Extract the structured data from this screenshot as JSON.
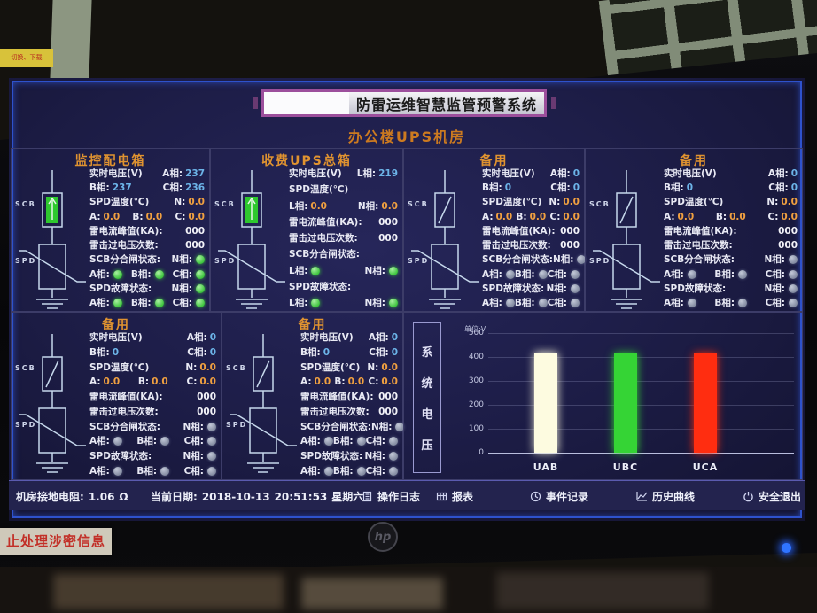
{
  "photo": {
    "bezel_sticker_top": "切换、下载",
    "bezel_sticker_bottom": "止处理涉密信息",
    "brand": "hp"
  },
  "header": {
    "system_title": "防雷运维智慧监管预警系统",
    "room_title": "办公楼UPS机房"
  },
  "panel_labels": {
    "scb": "SCB",
    "spd": "SPD",
    "voltage": "实时电压(V)",
    "phase_a": "A相:",
    "phase_b": "B相:",
    "phase_c": "C相:",
    "phase_l": "L相:",
    "phase_n": "N相:",
    "temp": "SPD温度(℃)",
    "n_short": "N:",
    "a_short": "A:",
    "b_short": "B:",
    "c_short": "C:",
    "peak": "雷电流峰值(KA):",
    "strikes": "雷击过电压次数:",
    "scb_state": "SCB分合闸状态:",
    "spd_state": "SPD故障状态:"
  },
  "panels": [
    {
      "title": "监控配电箱",
      "layout": "three",
      "scb_style": "closed",
      "led": "on",
      "va": "237",
      "vb": "237",
      "vc": "236",
      "tn": "0.0",
      "ta": "0.0",
      "tb": "0.0",
      "tc": "0.0",
      "peak": "000",
      "strikes": "000"
    },
    {
      "title": "收费UPS总箱",
      "layout": "two",
      "scb_style": "closed",
      "led": "on",
      "vl": "219",
      "tl": "0.0",
      "tn": "0.0",
      "peak": "000",
      "strikes": "000"
    },
    {
      "title": "备用",
      "layout": "three",
      "scb_style": "open",
      "led": "off",
      "va": "0",
      "vb": "0",
      "vc": "0",
      "tn": "0.0",
      "ta": "0.0",
      "tb": "0.0",
      "tc": "0.0",
      "peak": "000",
      "strikes": "000"
    },
    {
      "title": "备用",
      "layout": "three",
      "scb_style": "open",
      "led": "off",
      "va": "0",
      "vb": "0",
      "vc": "0",
      "tn": "0.0",
      "ta": "0.0",
      "tb": "0.0",
      "tc": "0.0",
      "peak": "000",
      "strikes": "000"
    },
    {
      "title": "备用",
      "layout": "three",
      "scb_style": "open",
      "led": "off",
      "va": "0",
      "vb": "0",
      "vc": "0",
      "tn": "0.0",
      "ta": "0.0",
      "tb": "0.0",
      "tc": "0.0",
      "peak": "000",
      "strikes": "000"
    },
    {
      "title": "备用",
      "layout": "three",
      "scb_style": "open",
      "led": "off",
      "va": "0",
      "vb": "0",
      "vc": "0",
      "tn": "0.0",
      "ta": "0.0",
      "tb": "0.0",
      "tc": "0.0",
      "peak": "000",
      "strikes": "000"
    }
  ],
  "chart_data": {
    "type": "bar",
    "title": "系统电压",
    "unit_label": "单位:V",
    "categories": [
      "UAB",
      "UBC",
      "UCA"
    ],
    "values": [
      418,
      414,
      416
    ],
    "bar_colors": [
      "#fdfbe0",
      "#35d435",
      "#ff2d10"
    ],
    "ylim": [
      0,
      500
    ],
    "yticks": [
      0,
      100,
      200,
      300,
      400,
      500
    ],
    "grid": true,
    "legend": false
  },
  "statusbar": {
    "ground_label": "机房接地电阻:",
    "ground_value": "1.06",
    "ground_unit": "Ω",
    "date_label": "当前日期:",
    "date_value": "2018-10-13",
    "time_value": "20:51:53",
    "weekday": "星期六",
    "buttons": [
      {
        "label": "操作日志",
        "icon": "log-icon"
      },
      {
        "label": "报表",
        "icon": "report-icon"
      },
      {
        "label": "事件记录",
        "icon": "event-icon"
      },
      {
        "label": "历史曲线",
        "icon": "curve-icon"
      },
      {
        "label": "安全退出",
        "icon": "power-icon"
      }
    ]
  },
  "colors": {
    "accent_orange": "#e09330",
    "value_cyan": "#6cb4e8",
    "value_orange": "#f0a040",
    "led_on": "#3cc43c",
    "led_off": "#828aa0",
    "title_border_purple": "#9c4f9c",
    "frame_blue": "#2e52cc"
  }
}
